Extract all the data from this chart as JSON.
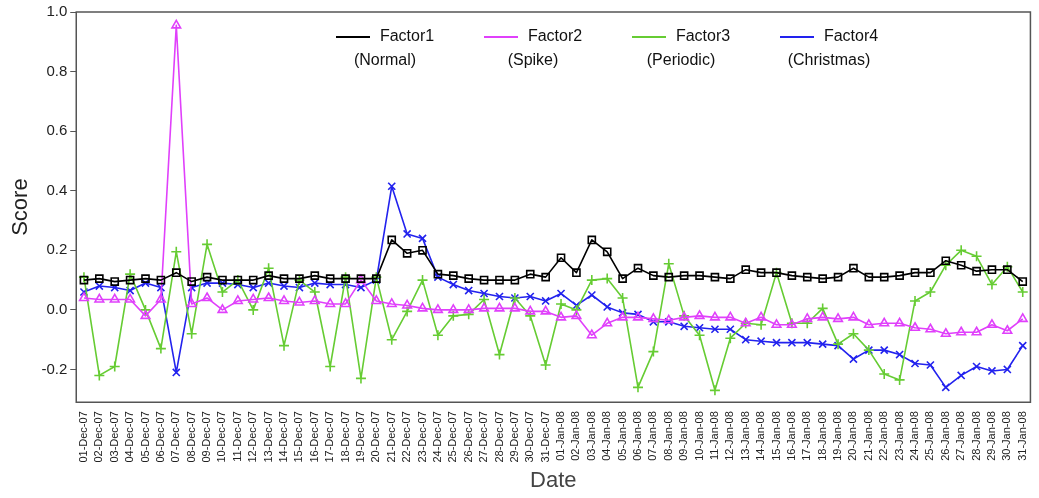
{
  "chart_data": {
    "type": "line",
    "xlabel": "Date",
    "ylabel": "Score",
    "categories": [
      "01-Dec-07",
      "02-Dec-07",
      "03-Dec-07",
      "04-Dec-07",
      "05-Dec-07",
      "06-Dec-07",
      "07-Dec-07",
      "08-Dec-07",
      "09-Dec-07",
      "10-Dec-07",
      "11-Dec-07",
      "12-Dec-07",
      "13-Dec-07",
      "14-Dec-07",
      "15-Dec-07",
      "16-Dec-07",
      "17-Dec-07",
      "18-Dec-07",
      "19-Dec-07",
      "20-Dec-07",
      "21-Dec-07",
      "22-Dec-07",
      "23-Dec-07",
      "24-Dec-07",
      "25-Dec-07",
      "26-Dec-07",
      "27-Dec-07",
      "28-Dec-07",
      "29-Dec-07",
      "30-Dec-07",
      "31-Dec-07",
      "01-Jan-08",
      "02-Jan-08",
      "03-Jan-08",
      "04-Jan-08",
      "05-Jan-08",
      "06-Jan-08",
      "07-Jan-08",
      "08-Jan-08",
      "09-Jan-08",
      "10-Jan-08",
      "11-Jan-08",
      "12-Jan-08",
      "13-Jan-08",
      "14-Jan-08",
      "15-Jan-08",
      "16-Jan-08",
      "17-Jan-08",
      "18-Jan-08",
      "19-Jan-08",
      "20-Jan-08",
      "21-Jan-08",
      "22-Jan-08",
      "23-Jan-08",
      "24-Jan-08",
      "25-Jan-08",
      "26-Jan-08",
      "27-Jan-08",
      "28-Jan-08",
      "29-Jan-08",
      "30-Jan-08",
      "31-Jan-08"
    ],
    "series": [
      {
        "name": "Factor1 (Normal)",
        "color": "#000000",
        "marker": "square",
        "values": [
          0.1,
          0.105,
          0.095,
          0.1,
          0.105,
          0.1,
          0.125,
          0.095,
          0.11,
          0.1,
          0.1,
          0.1,
          0.115,
          0.105,
          0.105,
          0.115,
          0.105,
          0.105,
          0.105,
          0.105,
          0.235,
          0.19,
          0.2,
          0.12,
          0.115,
          0.105,
          0.1,
          0.1,
          0.1,
          0.12,
          0.11,
          0.175,
          0.125,
          0.235,
          0.195,
          0.105,
          0.14,
          0.115,
          0.11,
          0.115,
          0.115,
          0.11,
          0.105,
          0.135,
          0.125,
          0.125,
          0.115,
          0.11,
          0.105,
          0.11,
          0.14,
          0.11,
          0.11,
          0.115,
          0.125,
          0.125,
          0.165,
          0.15,
          0.13,
          0.135,
          0.135,
          0.095
        ]
      },
      {
        "name": "Factor2 (Spike)",
        "color": "#e040fb",
        "marker": "triangle",
        "values": [
          0.04,
          0.035,
          0.035,
          0.035,
          -0.02,
          0.035,
          0.955,
          0.02,
          0.04,
          0.0,
          0.03,
          0.035,
          0.04,
          0.03,
          0.025,
          0.03,
          0.02,
          0.02,
          0.1,
          0.03,
          0.02,
          0.015,
          0.005,
          0.0,
          0.0,
          0.0,
          0.005,
          0.005,
          0.005,
          -0.005,
          -0.005,
          -0.025,
          -0.02,
          -0.085,
          -0.045,
          -0.025,
          -0.025,
          -0.03,
          -0.035,
          -0.025,
          -0.02,
          -0.025,
          -0.025,
          -0.045,
          -0.025,
          -0.05,
          -0.05,
          -0.03,
          -0.025,
          -0.03,
          -0.025,
          -0.05,
          -0.045,
          -0.045,
          -0.06,
          -0.065,
          -0.08,
          -0.075,
          -0.075,
          -0.05,
          -0.07,
          -0.03
        ]
      },
      {
        "name": "Factor3 (Periodic)",
        "color": "#66cc33",
        "marker": "cross",
        "values": [
          0.11,
          -0.22,
          -0.19,
          0.12,
          0.0,
          -0.13,
          0.195,
          -0.08,
          0.22,
          0.06,
          0.1,
          0.0,
          0.14,
          -0.12,
          0.1,
          0.06,
          -0.19,
          0.11,
          -0.23,
          0.11,
          -0.1,
          -0.005,
          0.1,
          -0.085,
          -0.02,
          -0.015,
          0.035,
          -0.15,
          0.04,
          -0.02,
          -0.185,
          0.02,
          0.0,
          0.1,
          0.105,
          0.04,
          -0.26,
          -0.14,
          0.155,
          -0.02,
          -0.085,
          -0.27,
          -0.095,
          -0.045,
          -0.05,
          0.125,
          -0.045,
          -0.045,
          0.005,
          -0.115,
          -0.08,
          -0.135,
          -0.215,
          -0.235,
          0.03,
          0.06,
          0.15,
          0.2,
          0.18,
          0.085,
          0.145,
          0.06
        ]
      },
      {
        "name": "Factor4 (Christmas)",
        "color": "#2222ee",
        "marker": "x",
        "values": [
          0.06,
          0.08,
          0.075,
          0.065,
          0.09,
          0.075,
          -0.21,
          0.075,
          0.09,
          0.09,
          0.085,
          0.075,
          0.09,
          0.08,
          0.075,
          0.09,
          0.085,
          0.085,
          0.075,
          0.1,
          0.415,
          0.255,
          0.24,
          0.11,
          0.085,
          0.065,
          0.055,
          0.045,
          0.04,
          0.045,
          0.03,
          0.055,
          0.015,
          0.05,
          0.01,
          -0.01,
          -0.015,
          -0.04,
          -0.04,
          -0.055,
          -0.06,
          -0.065,
          -0.065,
          -0.1,
          -0.105,
          -0.11,
          -0.11,
          -0.11,
          -0.115,
          -0.12,
          -0.165,
          -0.135,
          -0.135,
          -0.15,
          -0.18,
          -0.185,
          -0.26,
          -0.22,
          -0.19,
          -0.205,
          -0.2,
          -0.12
        ]
      }
    ],
    "ylim": [
      -0.31,
      1.0
    ],
    "yticks": [
      -0.2,
      {
        "value": 0,
        "label": "0.0"
      },
      0.2,
      0.4,
      0.6,
      0.8,
      {
        "value": 1,
        "label": "1.0"
      }
    ],
    "legend": "top",
    "grid": false
  }
}
